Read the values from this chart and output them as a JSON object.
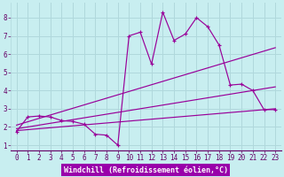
{
  "background_color": "#c8eef0",
  "grid_color": "#b0d8dc",
  "line_color": "#990099",
  "xlabel_bg_color": "#9900aa",
  "xlabel_text_color": "#ffffff",
  "xlim": [
    -0.5,
    23.5
  ],
  "ylim": [
    0.7,
    8.8
  ],
  "yticks": [
    1,
    2,
    3,
    4,
    5,
    6,
    7,
    8
  ],
  "xticks": [
    0,
    1,
    2,
    3,
    4,
    5,
    6,
    7,
    8,
    9,
    10,
    11,
    12,
    13,
    14,
    15,
    16,
    17,
    18,
    19,
    20,
    21,
    22,
    23
  ],
  "xlabel": "Windchill (Refroidissement éolien,°C)",
  "xlabel_fontsize": 6.0,
  "tick_fontsize": 5.5,
  "series_main": {
    "x": [
      0,
      1,
      2,
      3,
      4,
      5,
      6,
      7,
      8,
      9,
      10,
      11,
      12,
      13,
      14,
      15,
      16,
      17,
      18,
      19,
      20,
      21,
      22,
      23
    ],
    "y": [
      1.75,
      2.55,
      2.6,
      2.55,
      2.35,
      2.3,
      2.15,
      1.6,
      1.55,
      1.0,
      7.0,
      7.2,
      5.45,
      8.3,
      6.75,
      7.1,
      8.0,
      7.5,
      6.5,
      4.3,
      4.35,
      4.0,
      2.95,
      2.95
    ]
  },
  "trend_lines": [
    {
      "x": [
        0,
        23
      ],
      "y": [
        2.1,
        6.35
      ]
    },
    {
      "x": [
        0,
        23
      ],
      "y": [
        1.9,
        4.2
      ]
    },
    {
      "x": [
        0,
        23
      ],
      "y": [
        1.8,
        3.0
      ]
    }
  ]
}
